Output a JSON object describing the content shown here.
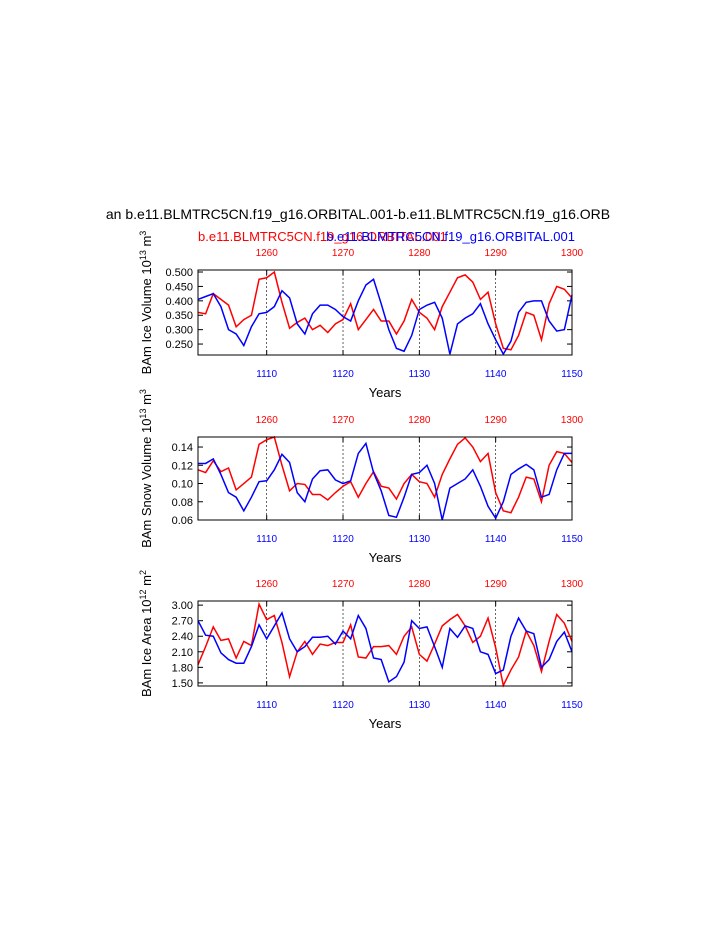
{
  "chart_data": [
    {
      "type": "line",
      "title": "an b.e11.BLMTRC5CN.f19_g16.ORBITAL.001-b.e11.BLMTRC5CN.f19_g16.ORB",
      "ylabel": [
        "BAm Ice Volume 10",
        "13",
        " m",
        "3"
      ],
      "xlabel": "Years",
      "x": [
        1101,
        1102,
        1103,
        1104,
        1105,
        1106,
        1107,
        1108,
        1109,
        1110,
        1111,
        1112,
        1113,
        1114,
        1115,
        1116,
        1117,
        1118,
        1119,
        1120,
        1121,
        1122,
        1123,
        1124,
        1125,
        1126,
        1127,
        1128,
        1129,
        1130,
        1131,
        1132,
        1133,
        1134,
        1135,
        1136,
        1137,
        1138,
        1139,
        1140,
        1141,
        1142,
        1143,
        1144,
        1145,
        1146,
        1147,
        1148,
        1149,
        1150
      ],
      "x2": [
        1251,
        1252,
        1253,
        1254,
        1255,
        1256,
        1257,
        1258,
        1259,
        1260,
        1261,
        1262,
        1263,
        1264,
        1265,
        1266,
        1267,
        1268,
        1269,
        1270,
        1271,
        1272,
        1273,
        1274,
        1275,
        1276,
        1277,
        1278,
        1279,
        1280,
        1281,
        1282,
        1283,
        1284,
        1285,
        1286,
        1287,
        1288,
        1289,
        1290,
        1291,
        1292,
        1293,
        1294,
        1295,
        1296,
        1297,
        1298,
        1299,
        1300
      ],
      "xlim": [
        1101,
        1150
      ],
      "xticks": [
        1110,
        1120,
        1130,
        1140,
        1150
      ],
      "xtick_color": "#0000ff",
      "x2lim": [
        1251,
        1300
      ],
      "x2ticks": [
        1260,
        1270,
        1280,
        1290,
        1300
      ],
      "x2tick_color": "#ff0000",
      "grid": "dashed",
      "ylim": [
        0.212,
        0.507
      ],
      "yticks": [
        {
          "value": 0.25,
          "label": "0.250"
        },
        {
          "value": 0.3,
          "label": "0.300"
        },
        {
          "value": 0.35,
          "label": "0.350"
        },
        {
          "value": 0.4,
          "label": "0.400"
        },
        {
          "value": 0.45,
          "label": "0.450"
        },
        {
          "value": 0.5,
          "label": "0.500"
        }
      ],
      "series": [
        {
          "name": "b.e11.BLMTRC5CN.f19_g16.ORBITAL.001",
          "color": "#ff0000",
          "xaxis": "x2",
          "values": [
            0.36,
            0.355,
            0.425,
            0.405,
            0.385,
            0.31,
            0.335,
            0.35,
            0.475,
            0.48,
            0.5,
            0.395,
            0.305,
            0.325,
            0.34,
            0.3,
            0.315,
            0.29,
            0.32,
            0.335,
            0.39,
            0.3,
            0.335,
            0.37,
            0.33,
            0.33,
            0.285,
            0.33,
            0.405,
            0.36,
            0.34,
            0.3,
            0.38,
            0.43,
            0.48,
            0.49,
            0.465,
            0.405,
            0.43,
            0.32,
            0.235,
            0.23,
            0.28,
            0.36,
            0.35,
            0.265,
            0.39,
            0.45,
            0.44,
            0.41
          ]
        },
        {
          "name": "b.e11.BLMTRC5CN.f19_g16.ORBITAL.001",
          "color": "#0000ff",
          "xaxis": "x",
          "values": [
            0.405,
            0.415,
            0.425,
            0.38,
            0.3,
            0.285,
            0.245,
            0.31,
            0.355,
            0.36,
            0.38,
            0.435,
            0.41,
            0.32,
            0.285,
            0.355,
            0.385,
            0.385,
            0.37,
            0.345,
            0.33,
            0.4,
            0.455,
            0.475,
            0.39,
            0.3,
            0.235,
            0.225,
            0.28,
            0.37,
            0.385,
            0.395,
            0.34,
            0.215,
            0.32,
            0.34,
            0.355,
            0.39,
            0.32,
            0.265,
            0.215,
            0.26,
            0.36,
            0.395,
            0.4,
            0.4,
            0.33,
            0.295,
            0.3,
            0.42
          ]
        }
      ]
    },
    {
      "type": "line",
      "ylabel": [
        "BAm Snow Volume 10",
        "13",
        " m",
        "3"
      ],
      "xlabel": "Years",
      "x": [
        1101,
        1102,
        1103,
        1104,
        1105,
        1106,
        1107,
        1108,
        1109,
        1110,
        1111,
        1112,
        1113,
        1114,
        1115,
        1116,
        1117,
        1118,
        1119,
        1120,
        1121,
        1122,
        1123,
        1124,
        1125,
        1126,
        1127,
        1128,
        1129,
        1130,
        1131,
        1132,
        1133,
        1134,
        1135,
        1136,
        1137,
        1138,
        1139,
        1140,
        1141,
        1142,
        1143,
        1144,
        1145,
        1146,
        1147,
        1148,
        1149,
        1150
      ],
      "x2": [
        1251,
        1252,
        1253,
        1254,
        1255,
        1256,
        1257,
        1258,
        1259,
        1260,
        1261,
        1262,
        1263,
        1264,
        1265,
        1266,
        1267,
        1268,
        1269,
        1270,
        1271,
        1272,
        1273,
        1274,
        1275,
        1276,
        1277,
        1278,
        1279,
        1280,
        1281,
        1282,
        1283,
        1284,
        1285,
        1286,
        1287,
        1288,
        1289,
        1290,
        1291,
        1292,
        1293,
        1294,
        1295,
        1296,
        1297,
        1298,
        1299,
        1300
      ],
      "xlim": [
        1101,
        1150
      ],
      "xticks": [
        1110,
        1120,
        1130,
        1140,
        1150
      ],
      "xtick_color": "#0000ff",
      "x2lim": [
        1251,
        1300
      ],
      "x2ticks": [
        1260,
        1270,
        1280,
        1290,
        1300
      ],
      "x2tick_color": "#ff0000",
      "grid": "dashed",
      "ylim": [
        0.06,
        0.151
      ],
      "yticks": [
        {
          "value": 0.06,
          "label": "0.06"
        },
        {
          "value": 0.08,
          "label": "0.08"
        },
        {
          "value": 0.1,
          "label": "0.10"
        },
        {
          "value": 0.12,
          "label": "0.12"
        },
        {
          "value": 0.14,
          "label": "0.14"
        }
      ],
      "series": [
        {
          "color": "#ff0000",
          "xaxis": "x2",
          "values": [
            0.115,
            0.112,
            0.125,
            0.113,
            0.117,
            0.093,
            0.1,
            0.107,
            0.143,
            0.148,
            0.151,
            0.12,
            0.092,
            0.1,
            0.099,
            0.088,
            0.088,
            0.082,
            0.09,
            0.097,
            0.102,
            0.085,
            0.1,
            0.113,
            0.097,
            0.095,
            0.083,
            0.1,
            0.11,
            0.102,
            0.1,
            0.085,
            0.11,
            0.127,
            0.143,
            0.15,
            0.14,
            0.124,
            0.133,
            0.09,
            0.07,
            0.068,
            0.085,
            0.107,
            0.105,
            0.08,
            0.12,
            0.135,
            0.133,
            0.123
          ]
        },
        {
          "color": "#0000ff",
          "xaxis": "x",
          "values": [
            0.122,
            0.122,
            0.127,
            0.11,
            0.09,
            0.085,
            0.07,
            0.085,
            0.102,
            0.103,
            0.115,
            0.132,
            0.123,
            0.09,
            0.08,
            0.105,
            0.114,
            0.115,
            0.104,
            0.1,
            0.103,
            0.133,
            0.144,
            0.112,
            0.092,
            0.065,
            0.063,
            0.085,
            0.11,
            0.112,
            0.12,
            0.1,
            0.06,
            0.095,
            0.1,
            0.105,
            0.115,
            0.097,
            0.075,
            0.062,
            0.08,
            0.11,
            0.116,
            0.121,
            0.115,
            0.085,
            0.088,
            0.115,
            0.133,
            0.133
          ]
        }
      ]
    },
    {
      "type": "line",
      "ylabel": [
        "BAm Ice Area 10",
        "12",
        " m",
        "2"
      ],
      "xlabel": "Years",
      "x": [
        1101,
        1102,
        1103,
        1104,
        1105,
        1106,
        1107,
        1108,
        1109,
        1110,
        1111,
        1112,
        1113,
        1114,
        1115,
        1116,
        1117,
        1118,
        1119,
        1120,
        1121,
        1122,
        1123,
        1124,
        1125,
        1126,
        1127,
        1128,
        1129,
        1130,
        1131,
        1132,
        1133,
        1134,
        1135,
        1136,
        1137,
        1138,
        1139,
        1140,
        1141,
        1142,
        1143,
        1144,
        1145,
        1146,
        1147,
        1148,
        1149,
        1150
      ],
      "x2": [
        1251,
        1252,
        1253,
        1254,
        1255,
        1256,
        1257,
        1258,
        1259,
        1260,
        1261,
        1262,
        1263,
        1264,
        1265,
        1266,
        1267,
        1268,
        1269,
        1270,
        1271,
        1272,
        1273,
        1274,
        1275,
        1276,
        1277,
        1278,
        1279,
        1280,
        1281,
        1282,
        1283,
        1284,
        1285,
        1286,
        1287,
        1288,
        1289,
        1290,
        1291,
        1292,
        1293,
        1294,
        1295,
        1296,
        1297,
        1298,
        1299,
        1300
      ],
      "xlim": [
        1101,
        1150
      ],
      "xticks": [
        1110,
        1120,
        1130,
        1140,
        1150
      ],
      "xtick_color": "#0000ff",
      "x2lim": [
        1251,
        1300
      ],
      "x2ticks": [
        1260,
        1270,
        1280,
        1290,
        1300
      ],
      "x2tick_color": "#ff0000",
      "grid": "dashed",
      "ylim": [
        1.44,
        3.08
      ],
      "yticks": [
        {
          "value": 1.5,
          "label": "1.50"
        },
        {
          "value": 1.8,
          "label": "1.80"
        },
        {
          "value": 2.1,
          "label": "2.10"
        },
        {
          "value": 2.4,
          "label": "2.40"
        },
        {
          "value": 2.7,
          "label": "2.70"
        },
        {
          "value": 3.0,
          "label": "3.00"
        }
      ],
      "series": [
        {
          "color": "#ff0000",
          "xaxis": "x2",
          "values": [
            1.85,
            2.2,
            2.58,
            2.32,
            2.35,
            1.98,
            2.3,
            2.22,
            3.02,
            2.72,
            2.8,
            2.28,
            1.62,
            2.1,
            2.3,
            2.05,
            2.25,
            2.22,
            2.28,
            2.28,
            2.62,
            2.0,
            1.98,
            2.2,
            2.2,
            2.22,
            2.05,
            2.4,
            2.58,
            2.05,
            1.92,
            2.25,
            2.6,
            2.72,
            2.82,
            2.6,
            2.28,
            2.4,
            2.75,
            2.18,
            1.45,
            1.75,
            2.0,
            2.5,
            2.22,
            1.72,
            2.3,
            2.82,
            2.65,
            2.3
          ]
        },
        {
          "color": "#0000ff",
          "xaxis": "x",
          "values": [
            2.7,
            2.42,
            2.4,
            2.08,
            1.95,
            1.88,
            1.88,
            2.2,
            2.62,
            2.35,
            2.6,
            2.85,
            2.35,
            2.1,
            2.2,
            2.38,
            2.38,
            2.4,
            2.25,
            2.5,
            2.35,
            2.8,
            2.55,
            1.98,
            1.95,
            1.52,
            1.62,
            1.9,
            2.7,
            2.55,
            2.58,
            2.2,
            1.8,
            2.55,
            2.38,
            2.6,
            2.55,
            2.1,
            2.05,
            1.68,
            1.75,
            2.4,
            2.75,
            2.5,
            2.45,
            1.8,
            1.95,
            2.3,
            2.48,
            2.1
          ]
        }
      ]
    }
  ]
}
